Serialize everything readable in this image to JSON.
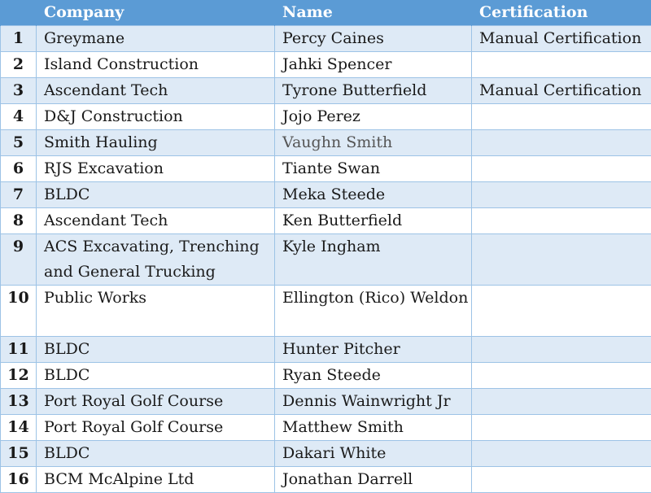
{
  "headers": {
    "number": "",
    "company": "Company",
    "name": "Name",
    "certification": "Certification"
  },
  "rows": [
    {
      "number": "1",
      "company": "Greymane",
      "name": "Percy Caines",
      "certification": "Manual Certification"
    },
    {
      "number": "2",
      "company": "Island Construction",
      "name": "Jahki Spencer",
      "certification": ""
    },
    {
      "number": "3",
      "company": "Ascendant Tech",
      "name": "Tyrone Butterfield",
      "certification": "Manual Certification"
    },
    {
      "number": "4",
      "company": "D&J Construction",
      "name": "Jojo Perez",
      "certification": ""
    },
    {
      "number": "5",
      "company": "Smith Hauling",
      "name": "Vaughn Smith",
      "certification": ""
    },
    {
      "number": "6",
      "company": "RJS Excavation",
      "name": "Tiante Swan",
      "certification": ""
    },
    {
      "number": "7",
      "company": "BLDC",
      "name": "Meka Steede",
      "certification": ""
    },
    {
      "number": "8",
      "company": "Ascendant Tech",
      "name": "Ken Butterfield",
      "certification": ""
    },
    {
      "number": "9",
      "company": "ACS Excavating, Trenching and General Trucking",
      "name": "Kyle Ingham",
      "certification": ""
    },
    {
      "number": "10",
      "company": "Public Works",
      "name": "Ellington (Rico) Weldon",
      "certification": ""
    },
    {
      "number": "11",
      "company": "BLDC",
      "name": "Hunter Pitcher",
      "certification": ""
    },
    {
      "number": "12",
      "company": "BLDC",
      "name": "Ryan Steede",
      "certification": ""
    },
    {
      "number": "13",
      "company": "Port Royal Golf Course",
      "name": "Dennis Wainwright Jr",
      "certification": ""
    },
    {
      "number": "14",
      "company": "Port Royal Golf Course",
      "name": "Matthew Smith",
      "certification": ""
    },
    {
      "number": "15",
      "company": "BLDC",
      "name": "Dakari White",
      "certification": ""
    },
    {
      "number": "16",
      "company": "BCM McAlpine Ltd",
      "name": "Jonathan Darrell",
      "certification": ""
    }
  ],
  "colors": {
    "header_bg": "#5b9bd5",
    "band_bg": "#deeaf6",
    "border": "#9dc3e6"
  }
}
